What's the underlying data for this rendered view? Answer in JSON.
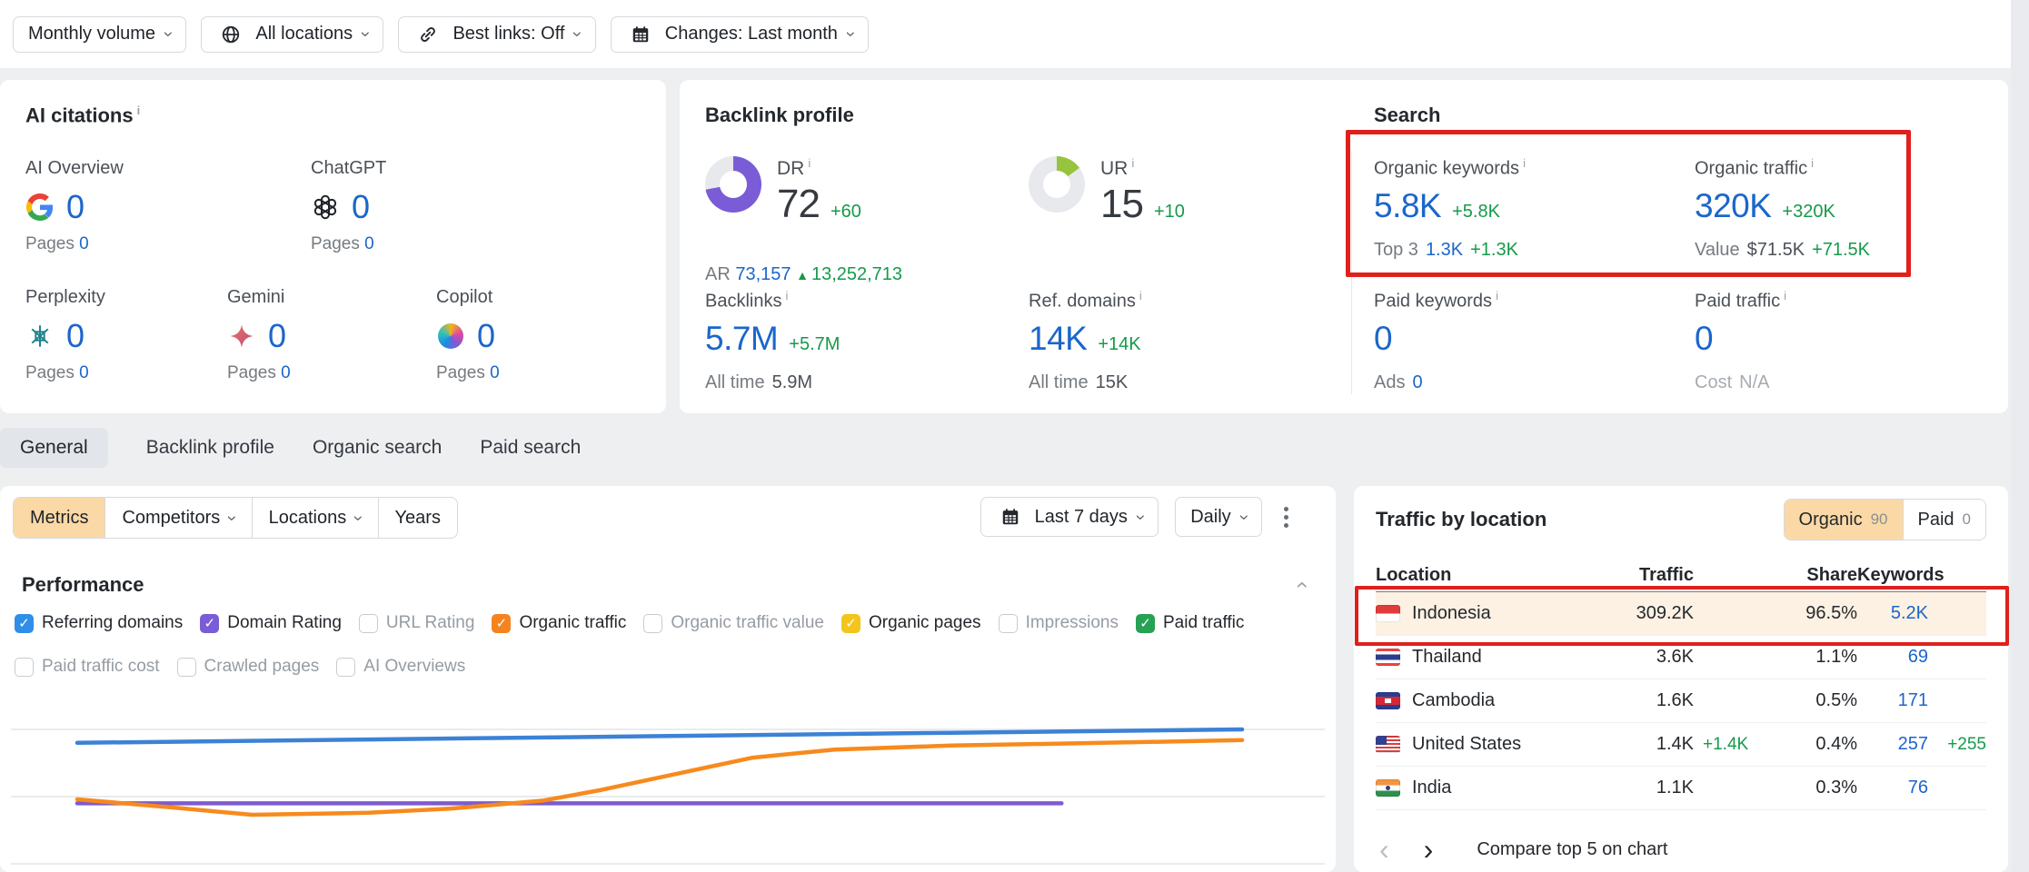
{
  "page": {
    "background": "#edeff1",
    "accent_peach": "#fbd9a6",
    "annotation_color": "#e0201c",
    "highlight_row": "#fcf1e2"
  },
  "toolbar": {
    "filters": [
      {
        "label": "Monthly volume",
        "icon": "none"
      },
      {
        "label": "All locations",
        "icon": "globe"
      },
      {
        "label": "Best links: Off",
        "icon": "link"
      },
      {
        "label": "Changes: Last month",
        "icon": "calendar"
      }
    ]
  },
  "ai_citations": {
    "title": "AI citations",
    "items": [
      {
        "name": "AI Overview",
        "icon": "google-g",
        "value": "0",
        "pages_label": "Pages",
        "pages_value": "0"
      },
      {
        "name": "ChatGPT",
        "icon": "openai",
        "value": "0",
        "pages_label": "Pages",
        "pages_value": "0"
      },
      {
        "name": "Perplexity",
        "icon": "perplexity",
        "value": "0",
        "pages_label": "Pages",
        "pages_value": "0"
      },
      {
        "name": "Gemini",
        "icon": "gemini",
        "value": "0",
        "pages_label": "Pages",
        "pages_value": "0"
      },
      {
        "name": "Copilot",
        "icon": "copilot",
        "value": "0",
        "pages_label": "Pages",
        "pages_value": "0"
      }
    ]
  },
  "backlink_profile": {
    "title": "Backlink profile",
    "dr": {
      "label": "DR",
      "value": "72",
      "delta": "+60",
      "percent": 72,
      "color": "#7a5cd6"
    },
    "ar": {
      "label": "AR",
      "value": "73,157",
      "delta": "13,252,713"
    },
    "ur": {
      "label": "UR",
      "value": "15",
      "delta": "+10",
      "percent": 15,
      "color": "#97c43e"
    },
    "backlinks": {
      "label": "Backlinks",
      "value": "5.7M",
      "delta": "+5.7M",
      "alltime_label": "All time",
      "alltime_value": "5.9M"
    },
    "ref_domains": {
      "label": "Ref. domains",
      "value": "14K",
      "delta": "+14K",
      "alltime_label": "All time",
      "alltime_value": "15K"
    }
  },
  "search": {
    "title": "Search",
    "organic_keywords": {
      "label": "Organic keywords",
      "value": "5.8K",
      "delta": "+5.8K",
      "sub_label": "Top 3",
      "sub_value": "1.3K",
      "sub_delta": "+1.3K"
    },
    "organic_traffic": {
      "label": "Organic traffic",
      "value": "320K",
      "delta": "+320K",
      "sub_label": "Value",
      "sub_value": "$71.5K",
      "sub_delta": "+71.5K"
    },
    "paid_keywords": {
      "label": "Paid keywords",
      "value": "0",
      "sub_label": "Ads",
      "sub_value": "0"
    },
    "paid_traffic": {
      "label": "Paid traffic",
      "value": "0",
      "sub_label": "Cost",
      "sub_value": "N/A"
    }
  },
  "tabs": [
    {
      "label": "General",
      "active": true
    },
    {
      "label": "Backlink profile",
      "active": false
    },
    {
      "label": "Organic search",
      "active": false
    },
    {
      "label": "Paid search",
      "active": false
    }
  ],
  "chart_controls": {
    "segments": [
      {
        "label": "Metrics",
        "active": true,
        "chevron": false
      },
      {
        "label": "Competitors",
        "active": false,
        "chevron": true
      },
      {
        "label": "Locations",
        "active": false,
        "chevron": true
      },
      {
        "label": "Years",
        "active": false,
        "chevron": false
      }
    ],
    "date_range": "Last 7 days",
    "granularity": "Daily"
  },
  "performance": {
    "title": "Performance",
    "metrics": [
      {
        "label": "Referring domains",
        "checked": true,
        "color": "#2f8fe8"
      },
      {
        "label": "Domain Rating",
        "checked": true,
        "color": "#7a5cd6"
      },
      {
        "label": "URL Rating",
        "checked": false,
        "color": ""
      },
      {
        "label": "Organic traffic",
        "checked": true,
        "color": "#f5831f"
      },
      {
        "label": "Organic traffic value",
        "checked": false,
        "color": ""
      },
      {
        "label": "Organic pages",
        "checked": true,
        "color": "#f3c51c"
      },
      {
        "label": "Impressions",
        "checked": false,
        "color": ""
      },
      {
        "label": "Paid traffic",
        "checked": true,
        "color": "#27a254"
      },
      {
        "label": "Paid traffic cost",
        "checked": false,
        "color": ""
      },
      {
        "label": "Crawled pages",
        "checked": false,
        "color": ""
      },
      {
        "label": "AI Overviews",
        "checked": false,
        "color": ""
      }
    ]
  },
  "chart_data": {
    "type": "line",
    "title": "Performance",
    "xlabel": "",
    "ylabel": "",
    "x_axis_note": "Last 7 days, daily granularity; axis tick labels not visible in screenshot",
    "ylim": [
      0,
      100
    ],
    "grid": "horizontal",
    "legend": "none (series toggled via metric checkboxes)",
    "series": [
      {
        "name": "Referring domains",
        "color": "#3c82d6",
        "x": [
          0,
          0.25,
          0.5,
          0.75,
          1
        ],
        "values": [
          90,
          92.5,
          95,
          97.5,
          100
        ]
      },
      {
        "name": "Organic traffic",
        "color": "#f78a1d",
        "x": [
          0,
          0.08,
          0.15,
          0.25,
          0.32,
          0.4,
          0.45,
          0.52,
          0.58,
          0.65,
          0.75,
          0.88,
          1
        ],
        "values": [
          48,
          42,
          36.5,
          38,
          41,
          47,
          55,
          68,
          79,
          85,
          88,
          90,
          92
        ]
      },
      {
        "name": "Domain Rating",
        "color": "#7e5bd0",
        "x": [
          0,
          0.845
        ],
        "values": [
          45,
          45
        ]
      }
    ],
    "note": "values are relative vertical positions (0-100) estimated from pixels; no numeric y-axis labels are shown on screen"
  },
  "traffic_by_location": {
    "title": "Traffic by location",
    "toggle": {
      "organic_label": "Organic",
      "organic_count": "90",
      "paid_label": "Paid",
      "paid_count": "0",
      "selected": "Organic"
    },
    "columns": [
      "Location",
      "Traffic",
      "Share",
      "Keywords"
    ],
    "rows": [
      {
        "location": "Indonesia",
        "flag": "id",
        "traffic": "309.2K",
        "traffic_delta": "",
        "share": "96.5%",
        "keywords": "5.2K",
        "keywords_delta": "",
        "highlighted": true
      },
      {
        "location": "Thailand",
        "flag": "th",
        "traffic": "3.6K",
        "traffic_delta": "",
        "share": "1.1%",
        "keywords": "69",
        "keywords_delta": "",
        "highlighted": false
      },
      {
        "location": "Cambodia",
        "flag": "kh",
        "traffic": "1.6K",
        "traffic_delta": "",
        "share": "0.5%",
        "keywords": "171",
        "keywords_delta": "",
        "highlighted": false
      },
      {
        "location": "United States",
        "flag": "us",
        "traffic": "1.4K",
        "traffic_delta": "+1.4K",
        "share": "0.4%",
        "keywords": "257",
        "keywords_delta": "+255",
        "highlighted": false
      },
      {
        "location": "India",
        "flag": "in",
        "traffic": "1.1K",
        "traffic_delta": "",
        "share": "0.3%",
        "keywords": "76",
        "keywords_delta": "",
        "highlighted": false
      }
    ],
    "footer_action": "Compare top 5 on chart"
  }
}
